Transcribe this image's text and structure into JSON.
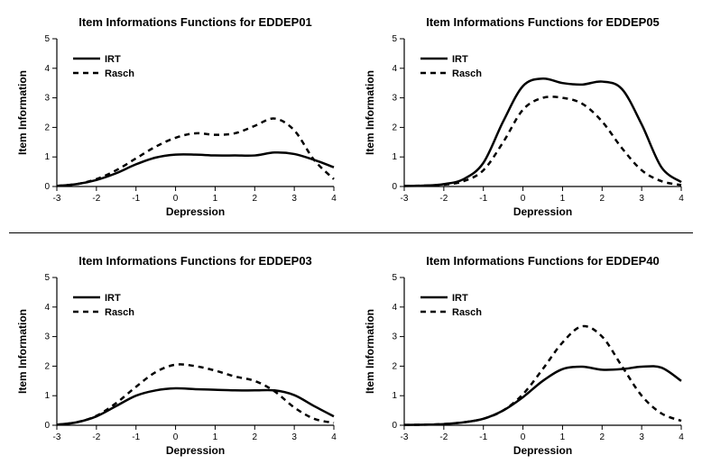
{
  "global": {
    "xlabel": "Depression",
    "ylabel": "Item Information",
    "xlim": [
      -3,
      4
    ],
    "ylim": [
      0,
      5
    ],
    "xticks": [
      -3,
      -2,
      -1,
      0,
      1,
      2,
      3,
      4
    ],
    "yticks": [
      0,
      1,
      2,
      3,
      4,
      5
    ],
    "title_fontsize": 13,
    "label_fontsize": 12,
    "tick_fontsize": 10,
    "line_width": 2.5,
    "background_color": "#ffffff",
    "axis_color": "#000000",
    "text_color": "#000000",
    "legend_labels": [
      "IRT",
      "Rasch"
    ],
    "dash_pattern": "6,5"
  },
  "panels": [
    {
      "key": "eddep01",
      "title": "Item Informations Functions for EDDEP01",
      "irt": {
        "x": [
          -3,
          -2.5,
          -2,
          -1.5,
          -1,
          -0.5,
          0,
          0.5,
          1,
          1.5,
          2,
          2.5,
          3,
          3.5,
          4
        ],
        "y": [
          0.02,
          0.08,
          0.22,
          0.45,
          0.75,
          0.98,
          1.08,
          1.08,
          1.05,
          1.05,
          1.05,
          1.15,
          1.1,
          0.9,
          0.65
        ]
      },
      "rasch": {
        "x": [
          -3,
          -2.5,
          -2,
          -1.5,
          -1,
          -0.5,
          0,
          0.5,
          1,
          1.5,
          2,
          2.5,
          3,
          3.5,
          4
        ],
        "y": [
          0.02,
          0.08,
          0.25,
          0.55,
          0.95,
          1.35,
          1.65,
          1.8,
          1.75,
          1.8,
          2.05,
          2.3,
          1.9,
          0.9,
          0.25
        ]
      }
    },
    {
      "key": "eddep05",
      "title": "Item Informations Functions for EDDEP05",
      "irt": {
        "x": [
          -3,
          -2.5,
          -2,
          -1.5,
          -1,
          -0.5,
          0,
          0.5,
          1,
          1.5,
          2,
          2.5,
          3,
          3.5,
          4
        ],
        "y": [
          0.02,
          0.03,
          0.08,
          0.25,
          0.8,
          2.2,
          3.4,
          3.65,
          3.5,
          3.45,
          3.55,
          3.3,
          2.1,
          0.65,
          0.15
        ]
      },
      "rasch": {
        "x": [
          -3,
          -2.5,
          -2,
          -1.5,
          -1,
          -0.5,
          0,
          0.5,
          1,
          1.5,
          2,
          2.5,
          3,
          3.5,
          4
        ],
        "y": [
          0.02,
          0.03,
          0.06,
          0.18,
          0.55,
          1.5,
          2.6,
          3.0,
          3.0,
          2.8,
          2.2,
          1.3,
          0.55,
          0.18,
          0.05
        ]
      }
    },
    {
      "key": "eddep03",
      "title": "Item Informations Functions for EDDEP03",
      "irt": {
        "x": [
          -3,
          -2.5,
          -2,
          -1.5,
          -1,
          -0.5,
          0,
          0.5,
          1,
          1.5,
          2,
          2.5,
          3,
          3.5,
          4
        ],
        "y": [
          0.02,
          0.1,
          0.3,
          0.65,
          1.0,
          1.18,
          1.25,
          1.22,
          1.2,
          1.18,
          1.18,
          1.18,
          1.02,
          0.65,
          0.3
        ]
      },
      "rasch": {
        "x": [
          -3,
          -2.5,
          -2,
          -1.5,
          -1,
          -0.5,
          0,
          0.5,
          1,
          1.5,
          2,
          2.5,
          3,
          3.5,
          4
        ],
        "y": [
          0.02,
          0.1,
          0.32,
          0.75,
          1.3,
          1.8,
          2.05,
          2.0,
          1.85,
          1.65,
          1.5,
          1.15,
          0.6,
          0.22,
          0.08
        ]
      }
    },
    {
      "key": "eddep40",
      "title": "Item Informations Functions for EDDEP40",
      "irt": {
        "x": [
          -3,
          -2.5,
          -2,
          -1.5,
          -1,
          -0.5,
          0,
          0.5,
          1,
          1.5,
          2,
          2.5,
          3,
          3.5,
          4
        ],
        "y": [
          0.01,
          0.02,
          0.04,
          0.1,
          0.22,
          0.5,
          0.95,
          1.5,
          1.9,
          1.98,
          1.88,
          1.9,
          1.98,
          1.95,
          1.5
        ]
      },
      "rasch": {
        "x": [
          -3,
          -2.5,
          -2,
          -1.5,
          -1,
          -0.5,
          0,
          0.5,
          1,
          1.5,
          2,
          2.5,
          3,
          3.5,
          4
        ],
        "y": [
          0.01,
          0.02,
          0.04,
          0.1,
          0.22,
          0.5,
          1.05,
          1.9,
          2.8,
          3.35,
          3.0,
          2.0,
          1.0,
          0.4,
          0.15
        ]
      }
    }
  ]
}
